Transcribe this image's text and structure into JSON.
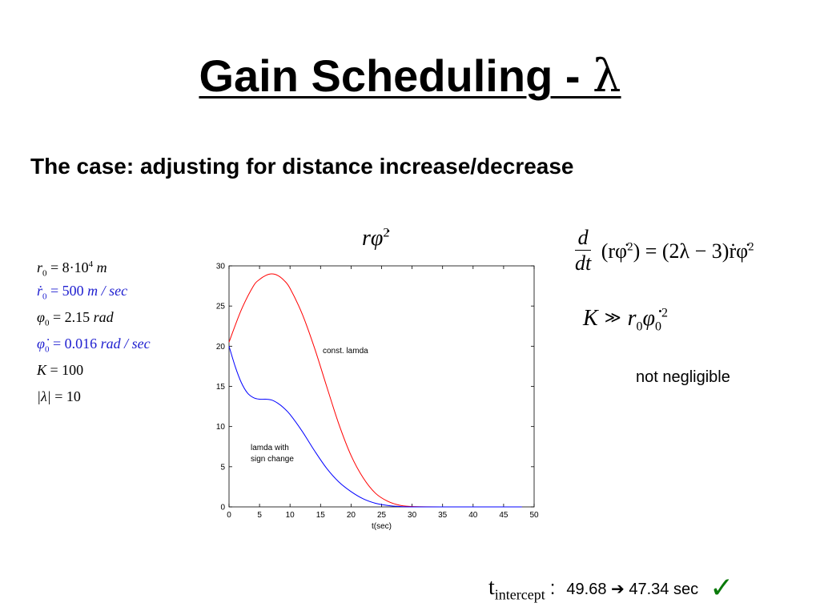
{
  "slide": {
    "title": "Gain Scheduling - ",
    "title_symbol": "λ",
    "subtitle": "The case: adjusting for distance increase/decrease"
  },
  "params": [
    {
      "lhs": "r",
      "sub": "0",
      "rhs": "= 8·10",
      "sup": "4",
      "unit": "m",
      "color": "#000000"
    },
    {
      "lhs": "ṙ",
      "sub": "0",
      "rhs": "= 500",
      "unit": "m / sec",
      "color": "#2020d0"
    },
    {
      "lhs": "φ",
      "sub": "0",
      "rhs": "= 2.15",
      "unit": "rad",
      "color": "#000000"
    },
    {
      "lhs": "φ̇",
      "sub": "0",
      "rhs": "= 0.016",
      "unit": "rad / sec",
      "color": "#2020d0"
    },
    {
      "lhs": "K",
      "rhs": "= 100",
      "color": "#000000"
    },
    {
      "lhs": "|λ|",
      "rhs": "= 10",
      "color": "#000000"
    }
  ],
  "formulas": {
    "rphi": "rφ̇",
    "rphi_sup": "2",
    "deriv_num": "d",
    "deriv_den": "dt",
    "deriv_lhs": "(rφ̇",
    "deriv_lhs_sup": "2",
    "deriv_rhs": ") = (2λ − 3)ṙφ̇",
    "deriv_rhs_sup": "2",
    "k_lhs": "K",
    "k_rel": "≫",
    "k_r": "r",
    "k_r_sub": "0",
    "k_phi": "φ̇",
    "k_phi_sub": "0",
    "k_sup": "2"
  },
  "note": "not negligible",
  "intercept": {
    "label": "t",
    "label_sub": "intercept",
    "colon": ":",
    "value_before": "49.68",
    "arrow": "➔",
    "value_after": "47.34 sec",
    "check": "✓",
    "check_icon": "checkmark-icon",
    "check_color": "#0a7a0a"
  },
  "chart_data": {
    "type": "line",
    "xlabel": "t(sec)",
    "ylabel": "",
    "xlim": [
      0,
      50
    ],
    "ylim": [
      0,
      30
    ],
    "xticks": [
      0,
      5,
      10,
      15,
      20,
      25,
      30,
      35,
      40,
      45,
      50
    ],
    "yticks": [
      0,
      5,
      10,
      15,
      20,
      25,
      30
    ],
    "grid": false,
    "series": [
      {
        "name": "const. lamda",
        "color": "#ff0000",
        "x": [
          0,
          2,
          4,
          5,
          6,
          7,
          8,
          9,
          10,
          12,
          14,
          16,
          18,
          20,
          22,
          24,
          26,
          28,
          30,
          35,
          40,
          45,
          48
        ],
        "y": [
          20.5,
          24.5,
          27.5,
          28.3,
          28.8,
          29.0,
          28.8,
          28.2,
          27.2,
          24.0,
          19.8,
          15.0,
          10.3,
          6.4,
          3.6,
          1.7,
          0.7,
          0.2,
          0.05,
          0,
          0,
          0,
          0
        ]
      },
      {
        "name": "lamda with sign change",
        "color": "#0000ff",
        "x": [
          0,
          1,
          2,
          3,
          4,
          5,
          6,
          7,
          8,
          9,
          10,
          12,
          14,
          16,
          18,
          20,
          22,
          24,
          26,
          28,
          30,
          35,
          40,
          45,
          48
        ],
        "y": [
          20.0,
          17.5,
          15.5,
          14.2,
          13.6,
          13.4,
          13.4,
          13.3,
          12.9,
          12.3,
          11.5,
          9.4,
          7.0,
          4.8,
          3.1,
          1.9,
          1.0,
          0.45,
          0.18,
          0.05,
          0,
          0,
          0,
          0,
          0
        ]
      }
    ],
    "annotations": [
      {
        "text": "const. lamda",
        "series": 0
      },
      {
        "text": "lamda with",
        "series": 1
      },
      {
        "text": "sign change",
        "series": 1
      }
    ]
  }
}
